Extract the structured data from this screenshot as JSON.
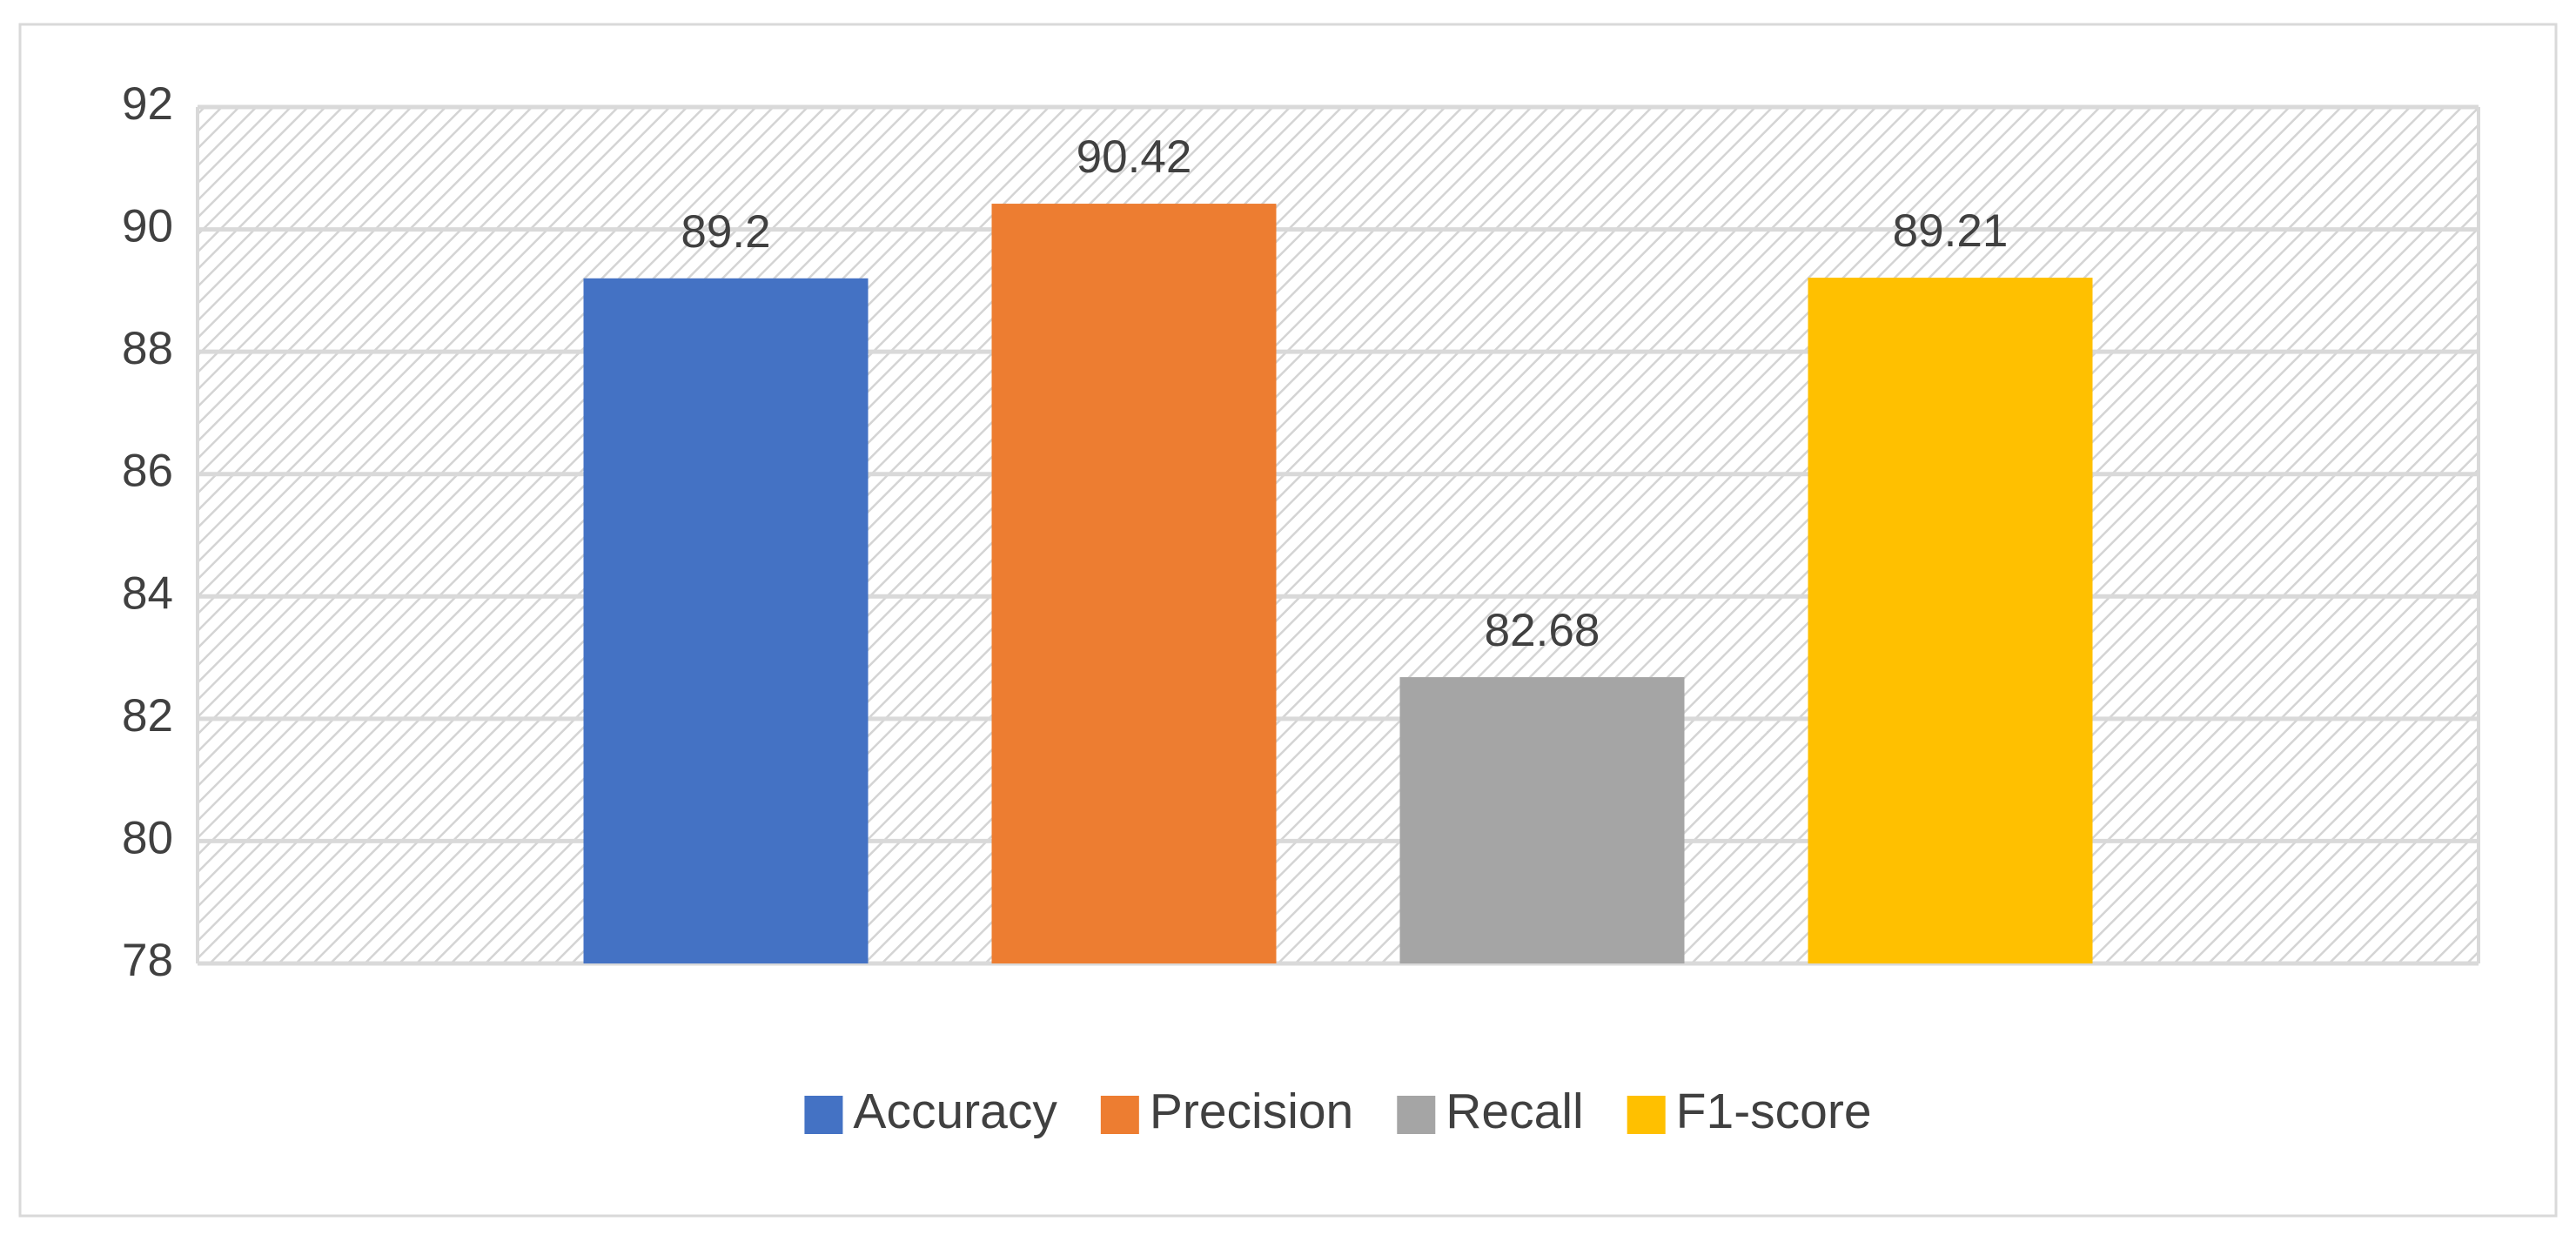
{
  "chart_data": {
    "type": "bar",
    "categories": [
      null
    ],
    "series": [
      {
        "name": "Accuracy",
        "color": "#4472c4",
        "values": [
          89.2
        ]
      },
      {
        "name": "Precision",
        "color": "#ed7d31",
        "values": [
          90.42
        ]
      },
      {
        "name": "Recall",
        "color": "#a5a5a5",
        "values": [
          82.68
        ]
      },
      {
        "name": "F1-score",
        "color": "#ffc000",
        "values": [
          89.21
        ]
      }
    ],
    "ylim": [
      78,
      92
    ],
    "yticks": [
      78,
      80,
      82,
      84,
      86,
      88,
      90,
      92
    ],
    "grid": true,
    "legend": "bottom",
    "data_labels": true
  }
}
